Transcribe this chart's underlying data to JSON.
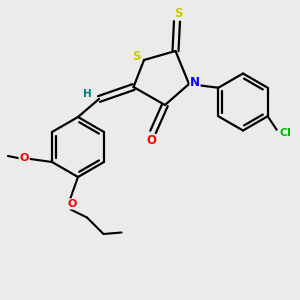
{
  "bg_color": "#ebebeb",
  "atom_colors": {
    "S": "#cccc00",
    "N": "#0000ff",
    "O": "#ff0000",
    "Cl": "#00bb00",
    "C": "#000000",
    "H": "#008080"
  },
  "bond_color": "#000000"
}
